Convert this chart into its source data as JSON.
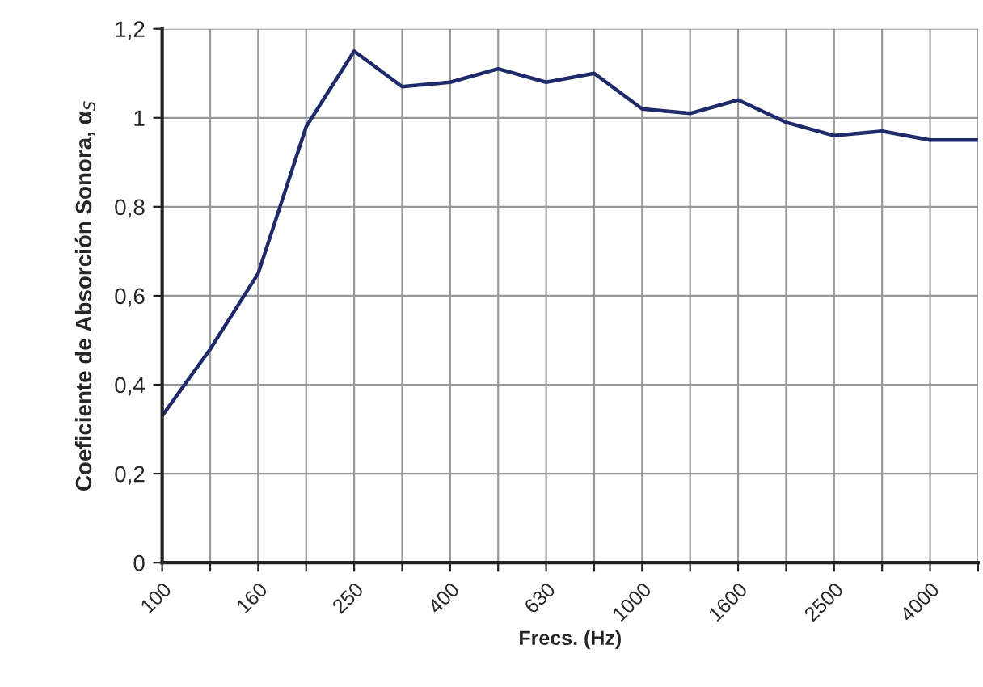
{
  "chart_data": {
    "type": "line",
    "xlabel": "Frecs. (Hz)",
    "ylabel": "Coeficiente de Absorción Sonora, α$_{S}$",
    "categories": [
      "100",
      null,
      "160",
      null,
      "250",
      null,
      "400",
      null,
      "630",
      null,
      "1000",
      null,
      "1600",
      null,
      "2500",
      null,
      "4000",
      null
    ],
    "series": [
      {
        "color": "#1f2a6b",
        "values": [
          0.33,
          0.48,
          0.65,
          0.98,
          1.15,
          1.07,
          1.08,
          1.11,
          1.08,
          1.1,
          1.02,
          1.01,
          1.04,
          0.99,
          0.96,
          0.97,
          0.95,
          0.95
        ]
      }
    ],
    "ylim": [
      0,
      1.2
    ],
    "yticks": [
      0,
      {
        "value": 0.2,
        "label": "0,2"
      },
      {
        "value": 0.4,
        "label": "0,4"
      },
      {
        "value": 0.6,
        "label": "0,6"
      },
      {
        "value": 0.8,
        "label": "0,8"
      },
      1,
      {
        "value": 1.2,
        "label": "1,2"
      }
    ],
    "grid": true,
    "marker": "none",
    "line_style": "solid",
    "legend": false
  }
}
